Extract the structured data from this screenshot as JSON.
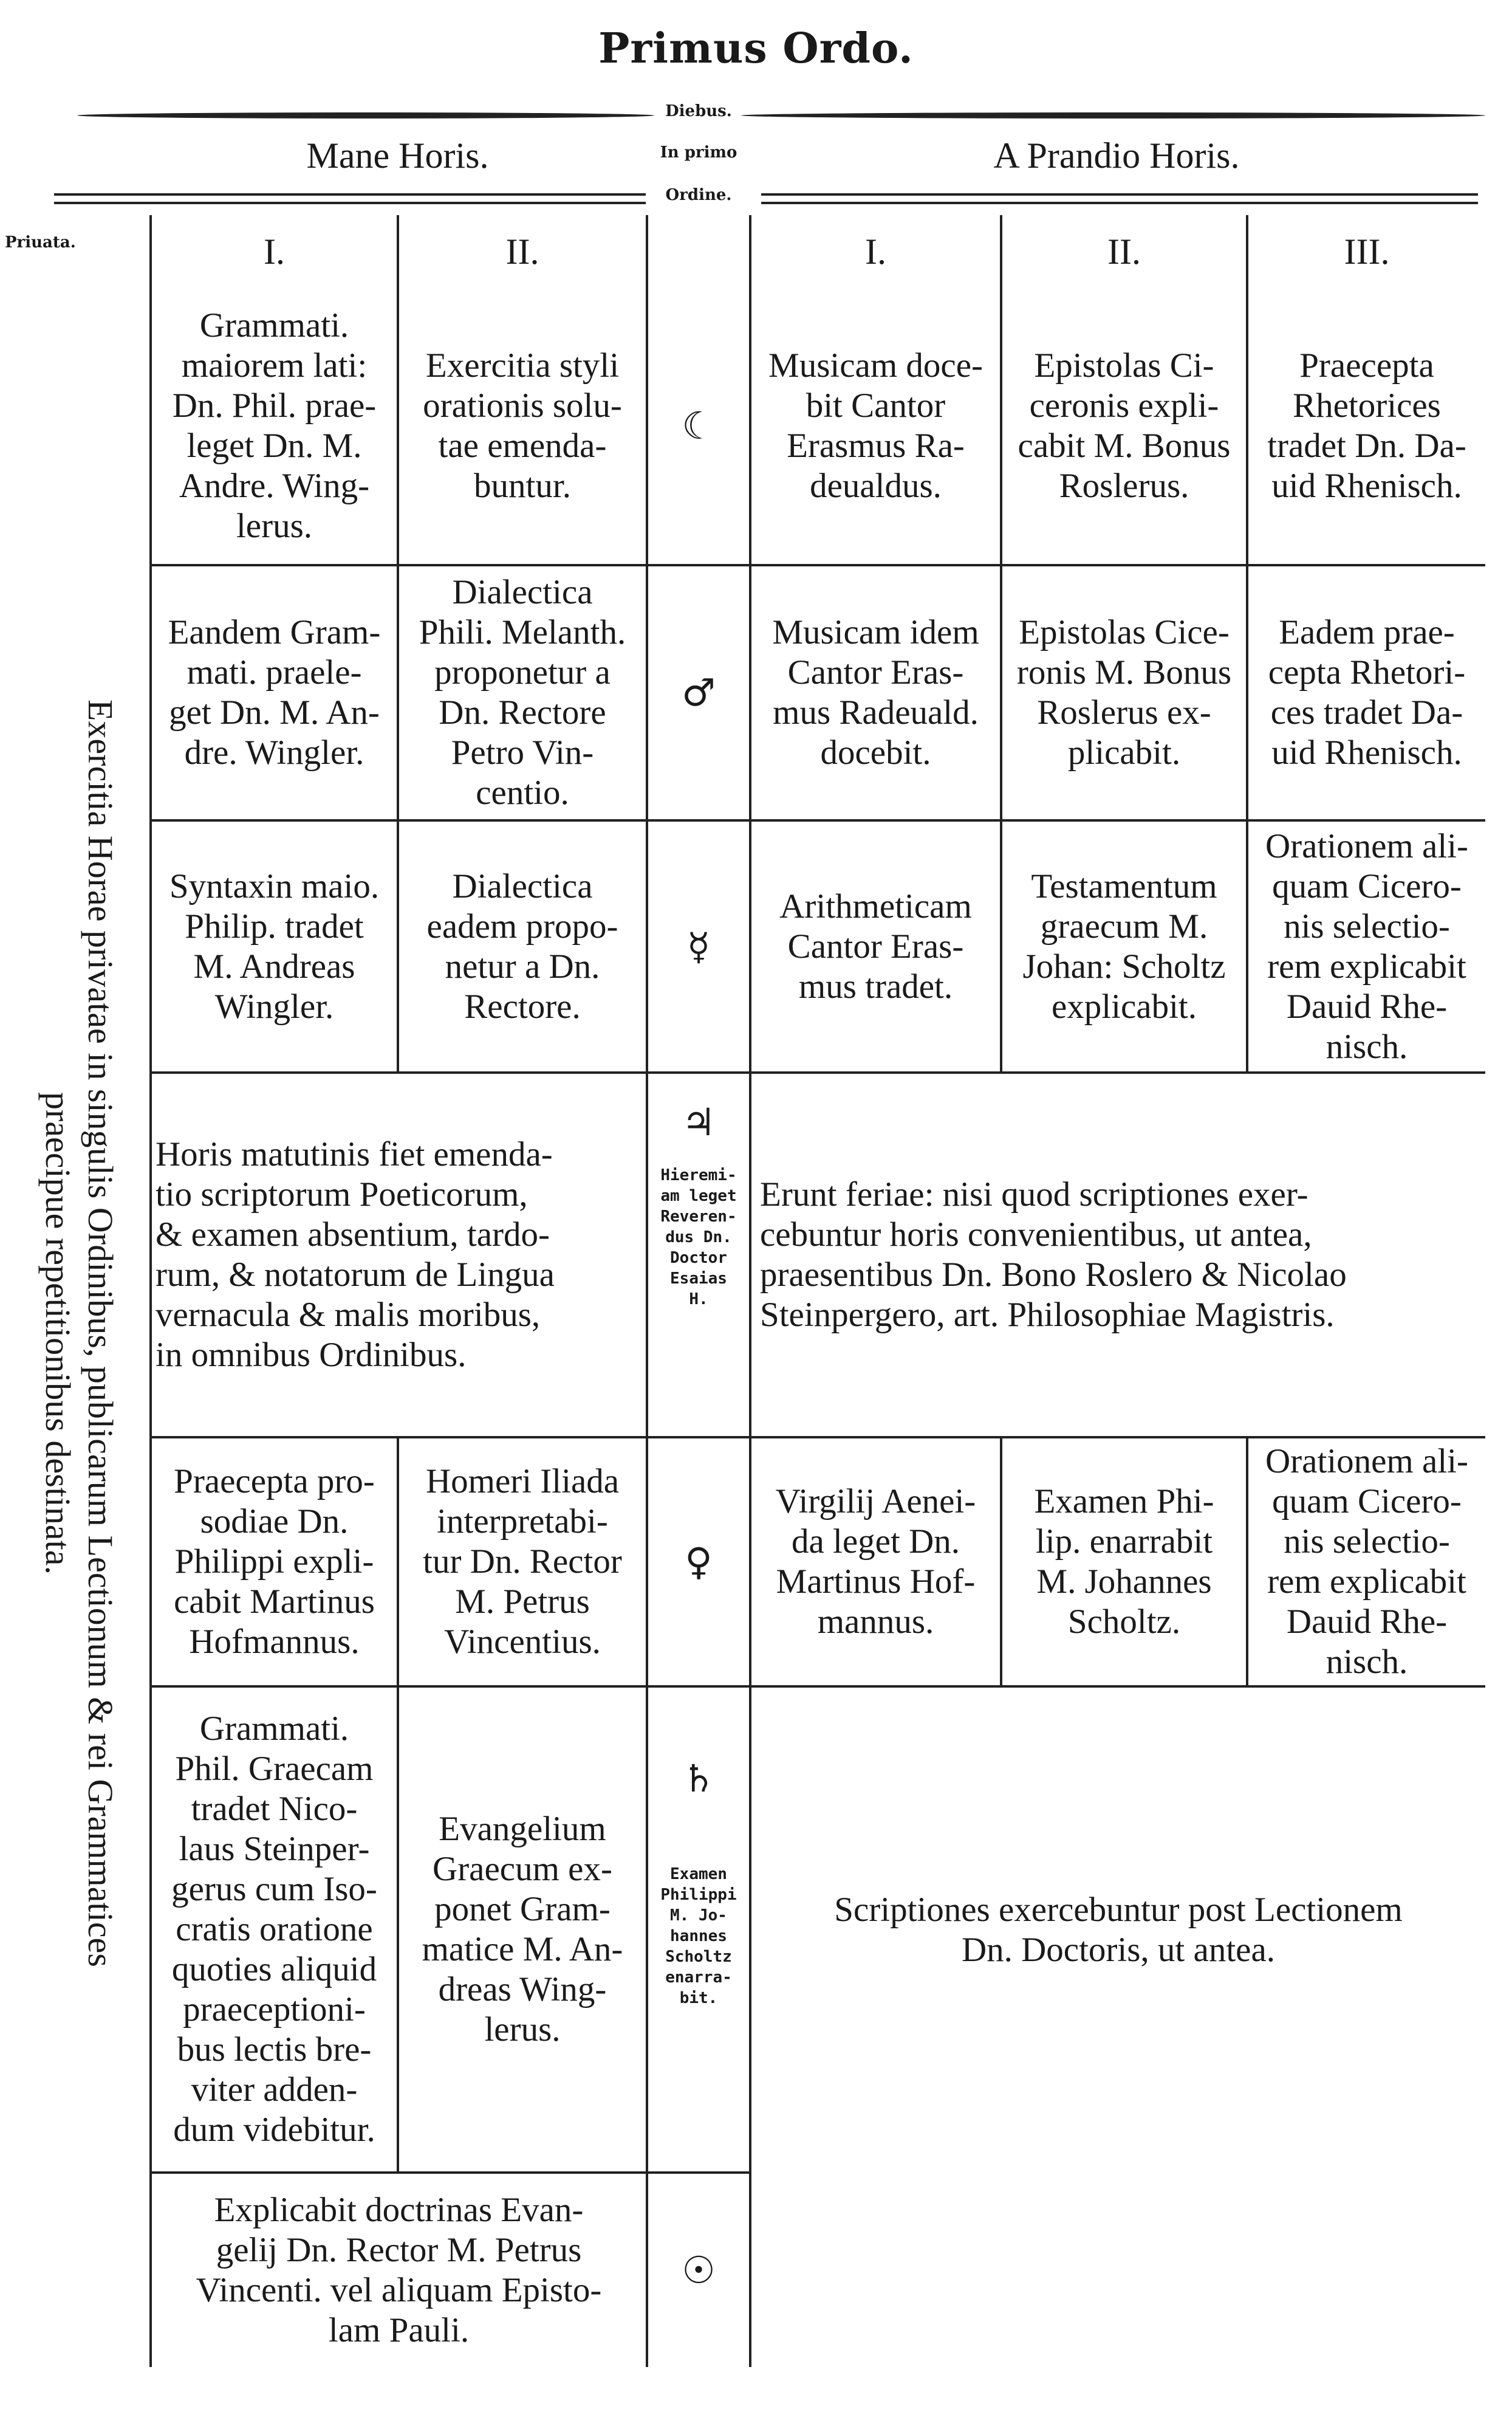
{
  "title": "Primus Ordo.",
  "header": {
    "diebus": "Diebus.",
    "in_primo": "In primo",
    "ordine": "Ordine.",
    "mane": "Mane Horis.",
    "prandio": "A Prandio Horis.",
    "priuata": "Priuata."
  },
  "side_note": "Exercitia Horae privatae in singulis Ordinibus, publicarum Lectionum & rei Grammatices\npraecipue repetitionibus destinata.",
  "numerals": [
    "I.",
    "II.",
    "I.",
    "II.",
    "III."
  ],
  "rows": [
    {
      "c1": "Grammati.\nmaiorem lati:\nDn. Phil. prae-\nleget Dn. M.\nAndre. Wing-\nlerus.",
      "c2": "Exercitia styli\norationis solu-\ntae emenda-\nbuntur.",
      "day": "☾",
      "c4": "Musicam doce-\nbit Cantor\nErasmus Ra-\ndeualdus.",
      "c5": "Epistolas Ci-\nceronis expli-\ncabit M. Bonus\nRoslerus.",
      "c6": "Praecepta\nRhetorices\ntradet Dn. Da-\nuid Rhenisch."
    },
    {
      "c1": "Eandem Gram-\nmati. praele-\nget Dn. M. An-\ndre. Wingler.",
      "c2": "Dialectica\nPhili. Melanth.\nproponetur a\nDn. Rectore\nPetro Vin-\ncentio.",
      "day": "♂",
      "c4": "Musicam idem\nCantor Eras-\nmus Radeuald.\ndocebit.",
      "c5": "Epistolas Cice-\nronis M. Bonus\nRoslerus ex-\nplicabit.",
      "c6": "Eadem prae-\ncepta Rhetori-\nces tradet Da-\nuid Rhenisch."
    },
    {
      "c1": "Syntaxin maio.\nPhilip. tradet\nM. Andreas\nWingler.",
      "c2": "Dialectica\neadem propo-\nnetur a Dn.\nRectore.",
      "day": "☿",
      "c4": "Arithmeticam\nCantor Eras-\nmus tradet.",
      "c5": "Testamentum\ngraecum M.\nJohan: Scholtz\nexplicabit.",
      "c6": "Orationem ali-\nquam Cicero-\nnis selectio-\nrem explicabit\nDauid Rhe-\nnisch."
    },
    {
      "c12": "Horis matutinis fiet emenda-\ntio scriptorum Poeticorum,\n& examen absentium, tardo-\nrum, & notatorum de Lingua\nvernacula & malis moribus,\nin omnibus Ordinibus.",
      "day": "♃",
      "day_note": "Hieremi-\nam leget\nReveren-\ndus Dn.\nDoctor\nEsaias\nH.",
      "c456": "Erunt feriae: nisi quod scriptiones exer-\ncebuntur horis convenientibus, ut antea,\npraesentibus Dn. Bono Roslero & Nicolao\nSteinpergero, art. Philosophiae Magistris."
    },
    {
      "c1": "Praecepta pro-\nsodiae Dn.\nPhilippi expli-\ncabit Martinus\nHofmannus.",
      "c2": "Homeri Iliada\ninterpretabi-\ntur Dn. Rector\nM. Petrus\nVincentius.",
      "day": "♀",
      "c4": "Virgilij Aenei-\nda leget Dn.\nMartinus Hof-\nmannus.",
      "c5": "Examen Phi-\nlip. enarrabit\nM. Johannes\nScholtz.",
      "c6": "Orationem ali-\nquam Cicero-\nnis selectio-\nrem explicabit\nDauid Rhe-\nnisch."
    },
    {
      "c1": "Grammati.\nPhil. Graecam\ntradet Nico-\nlaus Steinper-\ngerus cum Iso-\ncratis oratione\nquoties aliquid\npraeceptioni-\nbus lectis bre-\nviter adden-\ndum videbitur.",
      "c2": "Evangelium\nGraecum ex-\nponet Gram-\nmatice M. An-\ndreas Wing-\nlerus.",
      "day": "♄",
      "day_note": "Examen\nPhilippi\nM. Jo-\nhannes\nScholtz\nenarra-\nbit.",
      "c456": "Scriptiones exercebuntur post Lectionem\nDn. Doctoris, ut antea."
    },
    {
      "c12": "Explicabit doctrinas Evan-\ngelij Dn. Rector M. Petrus\nVincenti. vel aliquam Episto-\nlam Pauli.",
      "day": "☉"
    }
  ]
}
